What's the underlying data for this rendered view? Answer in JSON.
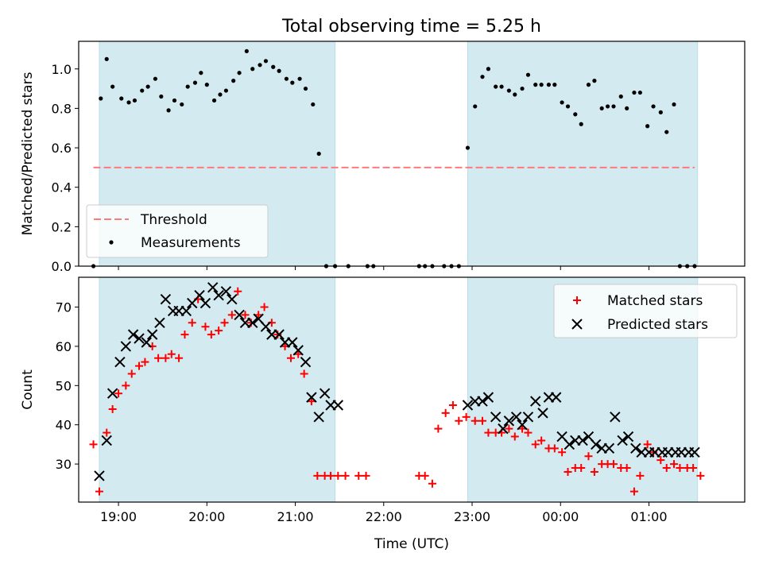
{
  "chart_data": {
    "type": "scatter",
    "title": "Total observing time = 5.25 h",
    "xlabel": "Time (UTC)",
    "x_unit": "time of day (UTC); values after midnight exceed 24:00",
    "x_ticks": [
      "19:00",
      "20:00",
      "21:00",
      "22:00",
      "23:00",
      "00:00",
      "01:00"
    ],
    "xlim": [
      "18:33",
      "02:05"
    ],
    "shaded_intervals": [
      [
        "18:47",
        "21:27"
      ],
      [
        "22:57",
        "01:33"
      ]
    ],
    "shade_color": "#d3eaf1",
    "panels": [
      {
        "name": "ratio",
        "ylabel": "Matched/Predicted stars",
        "ylim": [
          0,
          1.14
        ],
        "yticks": [
          "0.0",
          "0.2",
          "0.4",
          "0.6",
          "0.8",
          "1.0"
        ],
        "legend_position": "lower-left",
        "threshold": {
          "name": "Threshold",
          "value": 0.5,
          "x_range": [
            "18:43",
            "01:31"
          ],
          "color": "#ff7b7b"
        },
        "series": [
          {
            "name": "Measurements",
            "color": "#000000",
            "x": [
              "18:43",
              "18:48",
              "18:52",
              "18:56",
              "19:02",
              "19:07",
              "19:11",
              "19:16",
              "19:20",
              "19:25",
              "19:29",
              "19:34",
              "19:38",
              "19:43",
              "19:47",
              "19:52",
              "19:56",
              "20:00",
              "20:05",
              "20:09",
              "20:13",
              "20:18",
              "20:22",
              "20:27",
              "20:31",
              "20:36",
              "20:40",
              "20:45",
              "20:49",
              "20:54",
              "20:58",
              "21:03",
              "21:07",
              "21:12",
              "21:16",
              "21:21",
              "21:27",
              "21:36",
              "21:49",
              "21:53",
              "22:24",
              "22:28",
              "22:33",
              "22:41",
              "22:46",
              "22:51",
              "22:57",
              "23:02",
              "23:07",
              "23:11",
              "23:16",
              "23:20",
              "23:25",
              "23:29",
              "23:34",
              "23:38",
              "23:43",
              "23:47",
              "23:52",
              "23:56",
              "00:01",
              "00:05",
              "00:10",
              "00:14",
              "00:19",
              "00:23",
              "00:28",
              "00:32",
              "00:36",
              "00:41",
              "00:45",
              "00:50",
              "00:54",
              "00:59",
              "01:03",
              "01:08",
              "01:12",
              "01:17",
              "01:21",
              "01:26",
              "01:31"
            ],
            "y": [
              0.0,
              0.85,
              1.05,
              0.91,
              0.85,
              0.83,
              0.84,
              0.89,
              0.91,
              0.95,
              0.86,
              0.79,
              0.84,
              0.82,
              0.91,
              0.93,
              0.98,
              0.92,
              0.84,
              0.87,
              0.89,
              0.94,
              0.98,
              1.09,
              1.0,
              1.02,
              1.04,
              1.01,
              0.99,
              0.95,
              0.93,
              0.95,
              0.9,
              0.82,
              0.57,
              0.0,
              0.0,
              0.0,
              0.0,
              0.0,
              0.0,
              0.0,
              0.0,
              0.0,
              0.0,
              0.0,
              0.6,
              0.81,
              0.96,
              1.0,
              0.91,
              0.91,
              0.89,
              0.87,
              0.9,
              0.97,
              0.92,
              0.92,
              0.92,
              0.92,
              0.83,
              0.81,
              0.77,
              0.72,
              0.92,
              0.94,
              0.8,
              0.81,
              0.81,
              0.86,
              0.8,
              0.88,
              0.88,
              0.71,
              0.81,
              0.78,
              0.68,
              0.82,
              0.0,
              0.0,
              0.0
            ]
          }
        ]
      },
      {
        "name": "counts",
        "ylabel": "Count",
        "ylim": [
          20.3,
          77.6
        ],
        "yticks": [
          "30",
          "40",
          "50",
          "60",
          "70"
        ],
        "legend_position": "upper-right",
        "series": [
          {
            "name": "Matched stars",
            "marker": "+",
            "color": "#ff0000",
            "x": [
              "18:43",
              "18:47",
              "18:52",
              "18:56",
              "19:00",
              "19:05",
              "19:09",
              "19:14",
              "19:18",
              "19:23",
              "19:27",
              "19:32",
              "19:36",
              "19:41",
              "19:45",
              "19:50",
              "19:54",
              "19:59",
              "20:03",
              "20:08",
              "20:12",
              "20:17",
              "20:21",
              "20:26",
              "20:30",
              "20:35",
              "20:39",
              "20:44",
              "20:48",
              "20:53",
              "20:57",
              "21:02",
              "21:06",
              "21:11",
              "21:15",
              "21:20",
              "21:24",
              "21:29",
              "21:34",
              "21:43",
              "21:48",
              "22:24",
              "22:28",
              "22:33",
              "22:37",
              "22:42",
              "22:47",
              "22:51",
              "22:56",
              "23:02",
              "23:07",
              "23:11",
              "23:16",
              "23:20",
              "23:25",
              "23:29",
              "23:34",
              "23:38",
              "23:43",
              "23:47",
              "23:52",
              "23:56",
              "00:01",
              "00:05",
              "00:10",
              "00:14",
              "00:19",
              "00:23",
              "00:28",
              "00:32",
              "00:36",
              "00:41",
              "00:45",
              "00:50",
              "00:54",
              "00:59",
              "01:03",
              "01:08",
              "01:12",
              "01:17",
              "01:21",
              "01:26",
              "01:30",
              "01:35"
            ],
            "y": [
              35,
              23,
              38,
              44,
              48,
              50,
              53,
              55,
              56,
              60,
              57,
              57,
              58,
              57,
              63,
              66,
              72,
              65,
              63,
              64,
              66,
              68,
              74,
              68,
              66,
              68,
              70,
              66,
              63,
              60,
              57,
              58,
              53,
              46,
              27,
              27,
              27,
              27,
              27,
              27,
              27,
              27,
              27,
              25,
              39,
              43,
              45,
              41,
              42,
              41,
              41,
              38,
              38,
              38,
              39,
              37,
              39,
              38,
              35,
              36,
              34,
              34,
              33,
              28,
              29,
              29,
              32,
              28,
              30,
              30,
              30,
              29,
              29,
              23,
              27,
              35,
              33,
              31,
              29,
              30,
              29,
              29,
              29,
              27
            ]
          },
          {
            "name": "Predicted stars",
            "marker": "x",
            "color": "#000000",
            "x": [
              "18:47",
              "18:52",
              "18:56",
              "19:01",
              "19:05",
              "19:10",
              "19:14",
              "19:19",
              "19:23",
              "19:28",
              "19:32",
              "19:37",
              "19:41",
              "19:46",
              "19:50",
              "19:55",
              "19:59",
              "20:04",
              "20:08",
              "20:13",
              "20:17",
              "20:22",
              "20:26",
              "20:31",
              "20:35",
              "20:40",
              "20:44",
              "20:49",
              "20:53",
              "20:58",
              "21:02",
              "21:07",
              "21:11",
              "21:16",
              "21:20",
              "21:24",
              "21:29",
              "22:57",
              "23:02",
              "23:07",
              "23:11",
              "23:16",
              "23:21",
              "23:25",
              "23:30",
              "23:34",
              "23:38",
              "23:43",
              "23:48",
              "23:52",
              "23:57",
              "00:01",
              "00:06",
              "00:10",
              "00:15",
              "00:19",
              "00:24",
              "00:28",
              "00:33",
              "00:37",
              "00:42",
              "00:46",
              "00:51",
              "00:55",
              "01:00",
              "01:04",
              "01:09",
              "01:13",
              "01:18",
              "01:22",
              "01:27",
              "01:31"
            ],
            "y": [
              27,
              36,
              48,
              56,
              60,
              63,
              62,
              61,
              63,
              66,
              72,
              69,
              69,
              69,
              71,
              73,
              71,
              75,
              73,
              74,
              72,
              68,
              66,
              66,
              67,
              65,
              63,
              63,
              61,
              61,
              59,
              56,
              47,
              42,
              48,
              45,
              45,
              45,
              46,
              46,
              47,
              42,
              39,
              41,
              42,
              40,
              42,
              46,
              43,
              47,
              47,
              37,
              35,
              36,
              36,
              37,
              35,
              34,
              34,
              42,
              36,
              37,
              34,
              33,
              33,
              33,
              33,
              33,
              33,
              33,
              33,
              33
            ]
          }
        ]
      }
    ]
  }
}
